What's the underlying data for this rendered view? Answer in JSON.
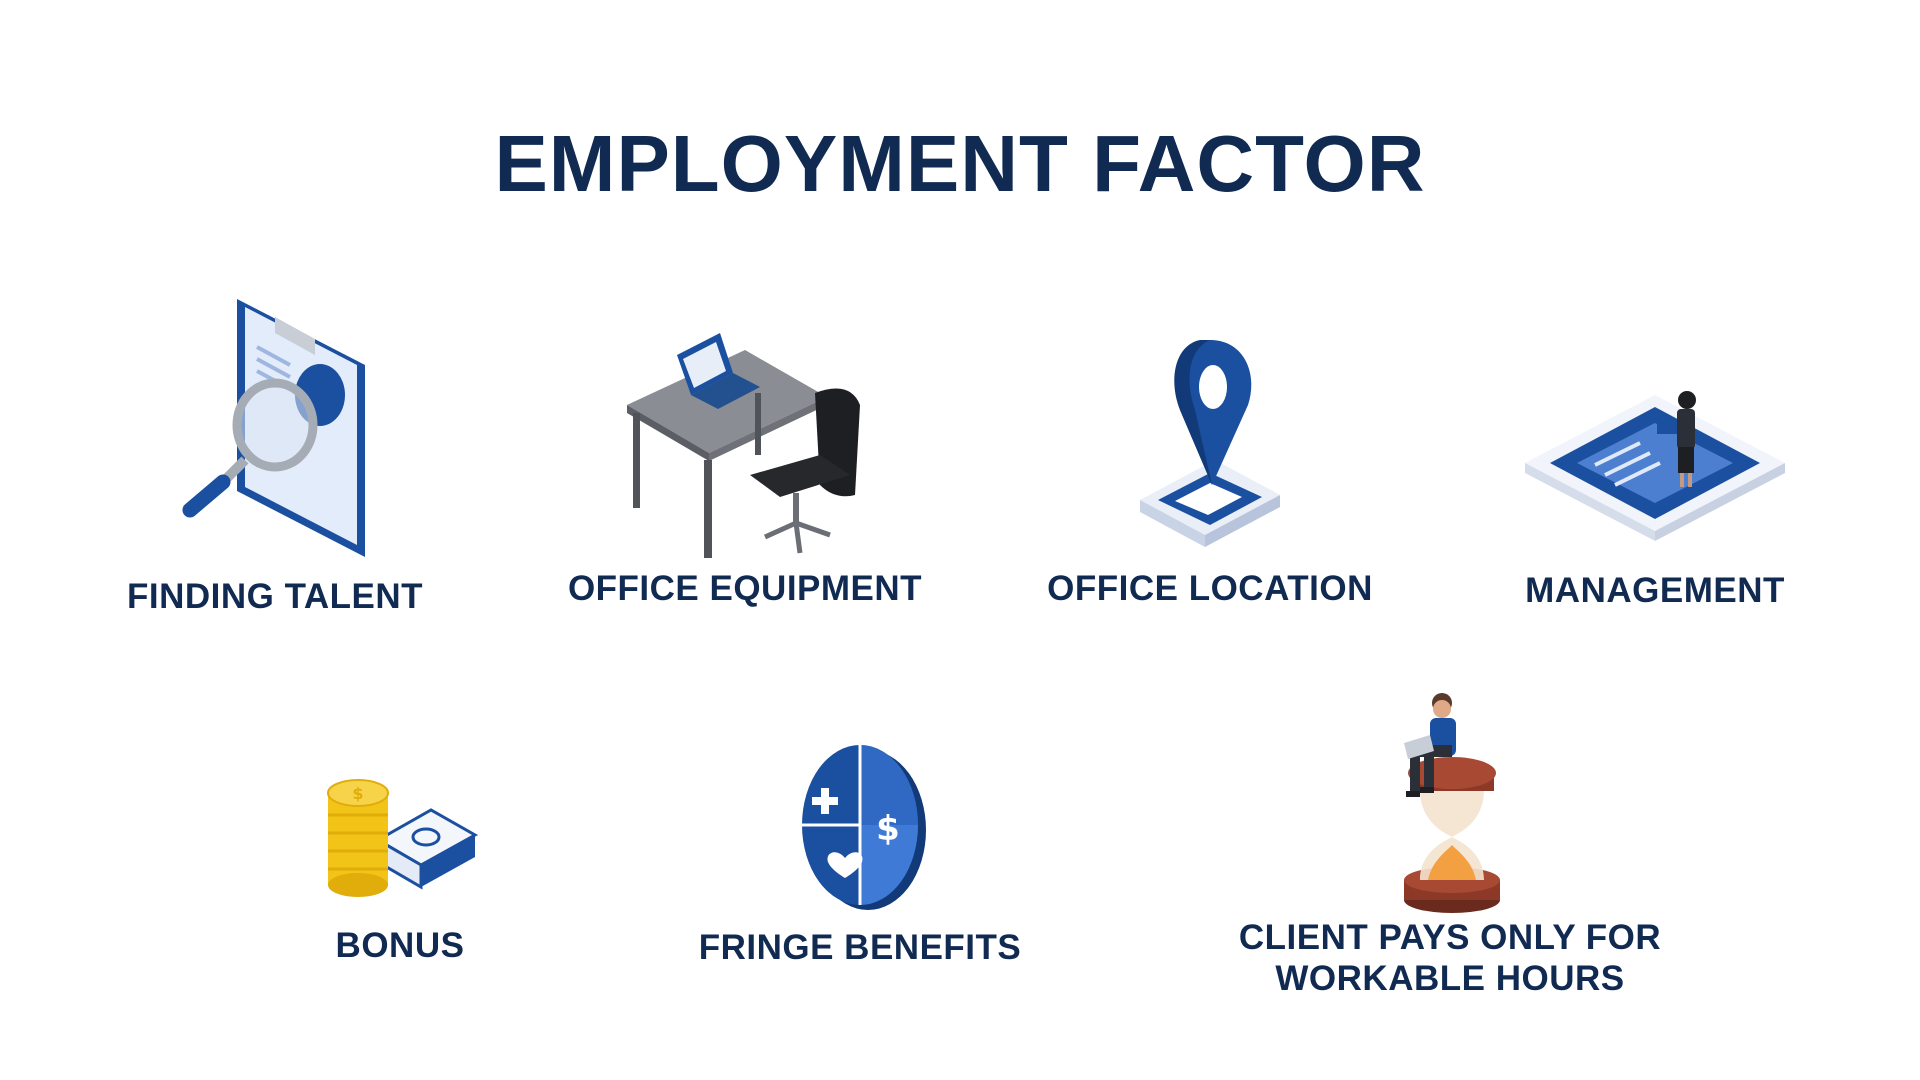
{
  "title": "EMPLOYMENT FACTOR",
  "colors": {
    "navy": "#112a52",
    "blue": "#1b4fa0",
    "light_blue": "#dfe9f8",
    "coin_gold": "#f2c417"
  },
  "factors": [
    {
      "label": "FINDING TALENT",
      "icon": "clipboard-magnifier-icon"
    },
    {
      "label": "OFFICE EQUIPMENT",
      "icon": "desk-chair-laptop-icon"
    },
    {
      "label": "OFFICE LOCATION",
      "icon": "map-pin-icon"
    },
    {
      "label": "MANAGEMENT",
      "icon": "tablet-manager-icon"
    },
    {
      "label": "BONUS",
      "icon": "coins-cash-icon"
    },
    {
      "label": "FRINGE BENEFITS",
      "icon": "benefits-disc-icon"
    },
    {
      "label_lines": [
        "CLIENT PAYS ONLY FOR",
        "WORKABLE HOURS"
      ],
      "icon": "hourglass-worker-icon"
    }
  ]
}
